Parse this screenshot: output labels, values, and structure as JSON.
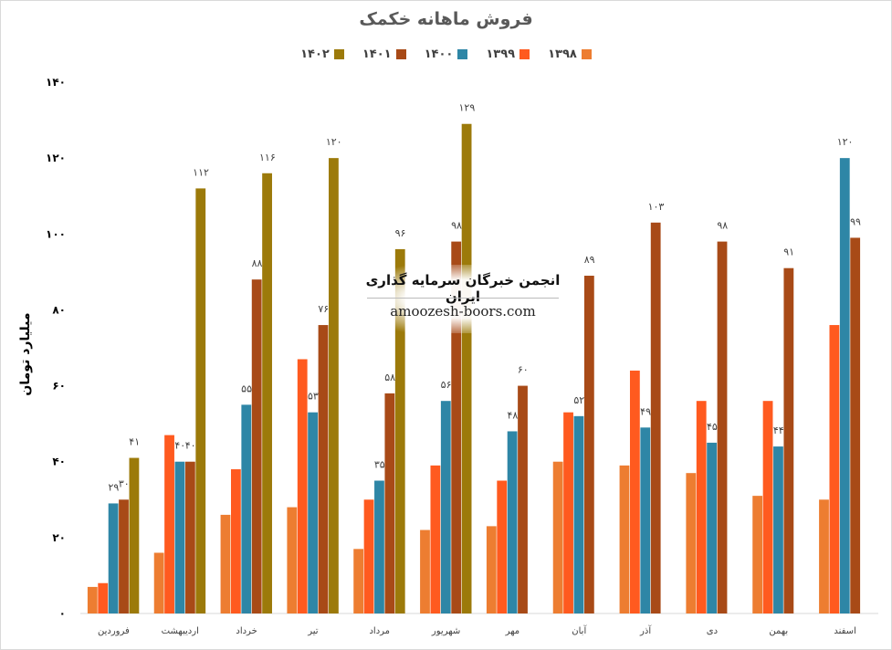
{
  "chart_data": {
    "type": "bar",
    "title": "فروش ماهانه خکمک",
    "ylabel": "میلیارد تومان",
    "xlabel": "",
    "ylim": [
      0,
      140
    ],
    "y_ticks": [
      "۰",
      "۲۰",
      "۴۰",
      "۶۰",
      "۸۰",
      "۱۰۰",
      "۱۲۰",
      "۱۴۰"
    ],
    "y_tick_values": [
      0,
      20,
      40,
      60,
      80,
      100,
      120,
      140
    ],
    "grid": false,
    "legend_position": "top",
    "categories": [
      "فروردین",
      "اردیبهشت",
      "خرداد",
      "تیر",
      "مرداد",
      "شهریور",
      "مهر",
      "آبان",
      "آذر",
      "دی",
      "بهمن",
      "اسفند"
    ],
    "series": [
      {
        "name": "۱۳۹۸",
        "color": "#ed7d31",
        "values": [
          7,
          16,
          26,
          28,
          17,
          22,
          23,
          40,
          39,
          37,
          31,
          30
        ],
        "labels": [
          null,
          null,
          null,
          null,
          null,
          null,
          null,
          null,
          null,
          null,
          null,
          null
        ]
      },
      {
        "name": "۱۳۹۹",
        "color": "#ff5a1f",
        "values": [
          8,
          47,
          38,
          67,
          30,
          39,
          35,
          53,
          64,
          56,
          56,
          76
        ],
        "labels": [
          null,
          null,
          null,
          null,
          null,
          null,
          null,
          null,
          null,
          null,
          null,
          null
        ]
      },
      {
        "name": "۱۴۰۰",
        "color": "#2e86a6",
        "values": [
          29,
          40,
          55,
          53,
          35,
          56,
          48,
          52,
          49,
          45,
          44,
          120
        ],
        "labels": [
          "۲۹",
          "۴۰",
          "۵۵",
          "۵۳",
          "۳۵",
          "۵۶",
          "۴۸",
          "۵۲",
          "۴۹",
          "۴۵",
          "۴۴",
          "۱۲۰"
        ]
      },
      {
        "name": "۱۴۰۱",
        "color": "#a84a17",
        "values": [
          30,
          40,
          88,
          76,
          58,
          98,
          60,
          89,
          103,
          98,
          91,
          99
        ],
        "labels": [
          "۳۰",
          "۴۰",
          "۸۸",
          "۷۶",
          "۵۸",
          "۹۸",
          "۶۰",
          "۸۹",
          "۱۰۳",
          "۹۸",
          "۹۱",
          "۹۹"
        ]
      },
      {
        "name": "۱۴۰۲",
        "color": "#9c7a0a",
        "values": [
          41,
          112,
          116,
          120,
          96,
          129,
          null,
          null,
          null,
          null,
          null,
          null
        ],
        "labels": [
          "۴۱",
          "۱۱۲",
          "۱۱۶",
          "۱۲۰",
          "۹۶",
          "۱۲۹",
          null,
          null,
          null,
          null,
          null,
          null
        ]
      }
    ]
  },
  "watermark": {
    "title": "انجمن خبرگان سرمایه گذاری ایران",
    "url": "amoozesh-boors.com"
  }
}
